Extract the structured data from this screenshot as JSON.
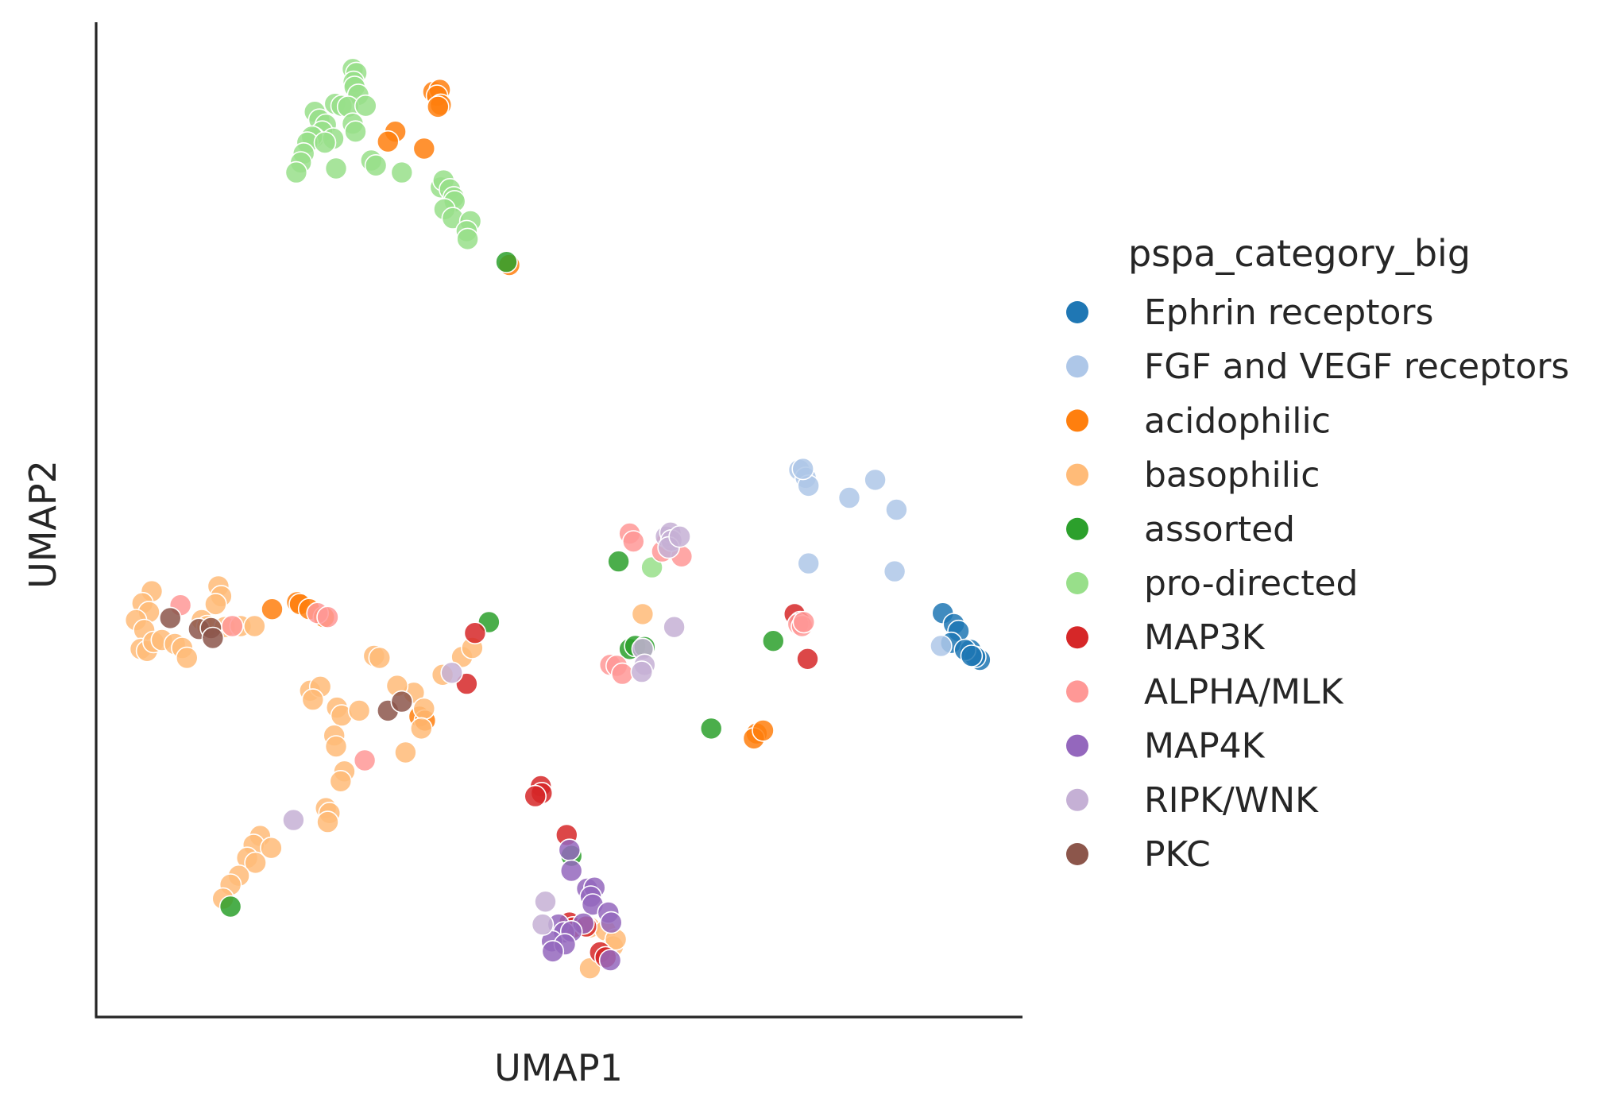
{
  "chart_data": {
    "type": "scatter",
    "xlabel": "UMAP1",
    "ylabel": "UMAP2",
    "xlim": [
      0,
      100
    ],
    "ylim": [
      0,
      100
    ],
    "x_ticks_visible": false,
    "y_ticks_visible": false,
    "grid": false,
    "legend": {
      "title": "pspa_category_big",
      "placement": "right, outside plot"
    },
    "series": [
      {
        "name": "Ephrin receptors",
        "color": "#1f77b4",
        "points": [
          [
            91.4,
            40.6
          ],
          [
            92.6,
            39.5
          ],
          [
            93.1,
            38.8
          ],
          [
            92.3,
            37.6
          ],
          [
            94.4,
            36.9
          ],
          [
            95.4,
            35.9
          ],
          [
            94.9,
            36.2
          ],
          [
            93.8,
            36.9
          ],
          [
            94.5,
            36.3
          ]
        ]
      },
      {
        "name": "FGF and VEGF receptors",
        "color": "#aec7e8",
        "points": [
          [
            75.9,
            55.0
          ],
          [
            76.6,
            54.2
          ],
          [
            76.9,
            53.4
          ],
          [
            81.3,
            52.2
          ],
          [
            84.1,
            54.0
          ],
          [
            86.4,
            51.0
          ],
          [
            76.9,
            45.6
          ],
          [
            86.2,
            44.8
          ],
          [
            91.2,
            37.3
          ],
          [
            76.3,
            55.1
          ]
        ]
      },
      {
        "name": "acidophilic",
        "color": "#ff7f0e",
        "points": [
          [
            36.4,
            93.0
          ],
          [
            37.1,
            93.2
          ],
          [
            36.8,
            92.6
          ],
          [
            37.2,
            91.7
          ],
          [
            36.9,
            91.5
          ],
          [
            32.3,
            89.0
          ],
          [
            31.5,
            88.0
          ],
          [
            35.4,
            87.3
          ],
          [
            44.6,
            75.6
          ],
          [
            19.0,
            41.0
          ],
          [
            21.7,
            41.7
          ],
          [
            22.0,
            41.5
          ],
          [
            23.0,
            41.0
          ],
          [
            24.6,
            40.2
          ],
          [
            34.9,
            30.2
          ],
          [
            35.5,
            29.8
          ],
          [
            71.3,
            28.5
          ],
          [
            71.0,
            28.0
          ],
          [
            72.0,
            28.8
          ]
        ]
      },
      {
        "name": "basophilic",
        "color": "#ffbb78",
        "points": [
          [
            6.0,
            42.8
          ],
          [
            5.0,
            41.6
          ],
          [
            5.7,
            40.7
          ],
          [
            4.3,
            39.9
          ],
          [
            5.2,
            38.9
          ],
          [
            4.8,
            37.0
          ],
          [
            5.5,
            36.8
          ],
          [
            6.2,
            37.7
          ],
          [
            7.1,
            37.9
          ],
          [
            8.5,
            37.5
          ],
          [
            9.3,
            37.1
          ],
          [
            9.8,
            36.1
          ],
          [
            13.2,
            43.3
          ],
          [
            13.5,
            42.3
          ],
          [
            12.9,
            41.5
          ],
          [
            11.4,
            39.9
          ],
          [
            12.0,
            39.3
          ],
          [
            13.9,
            39.2
          ],
          [
            15.6,
            39.3
          ],
          [
            17.1,
            39.3
          ],
          [
            30.0,
            36.3
          ],
          [
            30.6,
            36.1
          ],
          [
            39.5,
            36.2
          ],
          [
            40.6,
            37.1
          ],
          [
            37.4,
            34.4
          ],
          [
            34.3,
            32.6
          ],
          [
            32.5,
            33.3
          ],
          [
            35.4,
            31.0
          ],
          [
            23.1,
            32.8
          ],
          [
            24.2,
            33.2
          ],
          [
            23.4,
            31.9
          ],
          [
            26.0,
            31.1
          ],
          [
            26.5,
            30.3
          ],
          [
            28.4,
            30.8
          ],
          [
            35.1,
            29.0
          ],
          [
            25.7,
            28.3
          ],
          [
            25.9,
            27.2
          ],
          [
            33.4,
            26.6
          ],
          [
            26.8,
            24.7
          ],
          [
            26.4,
            23.7
          ],
          [
            24.8,
            21.0
          ],
          [
            25.2,
            20.5
          ],
          [
            25.0,
            19.6
          ],
          [
            17.7,
            18.2
          ],
          [
            17.0,
            17.3
          ],
          [
            16.3,
            16.0
          ],
          [
            17.2,
            15.5
          ],
          [
            18.9,
            17.0
          ],
          [
            15.4,
            14.2
          ],
          [
            14.5,
            13.3
          ],
          [
            13.7,
            11.9
          ],
          [
            59.0,
            40.5
          ],
          [
            53.3,
            9.0
          ],
          [
            55.0,
            8.7
          ],
          [
            55.8,
            7.1
          ],
          [
            56.1,
            7.8
          ],
          [
            53.3,
            4.9
          ]
        ]
      },
      {
        "name": "assorted",
        "color": "#2ca02c",
        "points": [
          [
            44.3,
            75.9
          ],
          [
            56.4,
            45.8
          ],
          [
            42.4,
            39.7
          ],
          [
            57.6,
            37.0
          ],
          [
            58.2,
            37.3
          ],
          [
            59.2,
            37.2
          ],
          [
            73.1,
            37.8
          ],
          [
            66.4,
            29.0
          ],
          [
            51.3,
            16.2
          ],
          [
            14.5,
            11.1
          ]
        ]
      },
      {
        "name": "pro-directed",
        "color": "#98df8a",
        "points": [
          [
            27.7,
            95.3
          ],
          [
            28.1,
            94.9
          ],
          [
            27.8,
            94.0
          ],
          [
            27.9,
            93.5
          ],
          [
            28.3,
            92.7
          ],
          [
            25.8,
            91.8
          ],
          [
            26.5,
            91.6
          ],
          [
            27.2,
            91.5
          ],
          [
            29.1,
            91.6
          ],
          [
            23.6,
            91.0
          ],
          [
            24.1,
            90.2
          ],
          [
            24.8,
            89.7
          ],
          [
            27.7,
            89.8
          ],
          [
            28.0,
            89.0
          ],
          [
            24.4,
            89.0
          ],
          [
            23.5,
            88.4
          ],
          [
            23.3,
            88.5
          ],
          [
            22.8,
            87.9
          ],
          [
            25.6,
            88.3
          ],
          [
            24.7,
            87.9
          ],
          [
            22.4,
            86.8
          ],
          [
            22.1,
            85.9
          ],
          [
            25.9,
            85.3
          ],
          [
            29.7,
            86.1
          ],
          [
            30.2,
            85.6
          ],
          [
            33.0,
            84.9
          ],
          [
            37.2,
            83.4
          ],
          [
            37.5,
            84.1
          ],
          [
            38.2,
            83.2
          ],
          [
            38.6,
            82.4
          ],
          [
            38.7,
            82.0
          ],
          [
            37.6,
            81.2
          ],
          [
            38.5,
            80.3
          ],
          [
            40.4,
            80.0
          ],
          [
            40.0,
            79.0
          ],
          [
            40.1,
            78.2
          ],
          [
            21.6,
            84.9
          ],
          [
            60.0,
            45.2
          ]
        ]
      },
      {
        "name": "MAP3K",
        "color": "#d62728",
        "points": [
          [
            40.9,
            38.6
          ],
          [
            40.0,
            33.5
          ],
          [
            75.4,
            40.5
          ],
          [
            76.0,
            39.7
          ],
          [
            76.8,
            36.0
          ],
          [
            48.0,
            23.2
          ],
          [
            48.1,
            22.5
          ],
          [
            47.4,
            22.2
          ],
          [
            50.8,
            18.3
          ],
          [
            51.1,
            9.5
          ],
          [
            51.5,
            9.0
          ],
          [
            52.9,
            9.1
          ],
          [
            54.4,
            6.5
          ],
          [
            55.0,
            6.0
          ]
        ]
      },
      {
        "name": "ALPHA/MLK",
        "color": "#ff9896",
        "points": [
          [
            9.1,
            41.4
          ],
          [
            23.9,
            40.6
          ],
          [
            25.0,
            40.2
          ],
          [
            14.7,
            39.3
          ],
          [
            29.0,
            25.8
          ],
          [
            55.5,
            35.4
          ],
          [
            56.2,
            35.3
          ],
          [
            56.8,
            34.5
          ],
          [
            57.6,
            48.6
          ],
          [
            58.0,
            47.8
          ],
          [
            61.6,
            47.8
          ],
          [
            61.1,
            46.8
          ],
          [
            75.8,
            39.5
          ],
          [
            76.2,
            39.3
          ],
          [
            76.4,
            39.7
          ],
          [
            63.2,
            46.3
          ]
        ]
      },
      {
        "name": "MAP4K",
        "color": "#9467bd",
        "points": [
          [
            51.1,
            16.8
          ],
          [
            51.3,
            14.7
          ],
          [
            53.0,
            12.9
          ],
          [
            53.8,
            13.0
          ],
          [
            53.4,
            12.1
          ],
          [
            53.6,
            11.3
          ],
          [
            52.6,
            9.4
          ],
          [
            55.3,
            10.5
          ],
          [
            55.6,
            9.5
          ],
          [
            49.9,
            9.3
          ],
          [
            50.5,
            8.5
          ],
          [
            51.3,
            8.6
          ],
          [
            49.2,
            7.6
          ],
          [
            50.6,
            7.3
          ],
          [
            49.3,
            6.6
          ],
          [
            55.5,
            5.7
          ]
        ]
      },
      {
        "name": "RIPK/WNK",
        "color": "#c5b0d5",
        "points": [
          [
            61.5,
            48.3
          ],
          [
            62.0,
            48.7
          ],
          [
            62.1,
            47.9
          ],
          [
            61.8,
            47.2
          ],
          [
            63.0,
            48.3
          ],
          [
            62.4,
            39.2
          ],
          [
            59.0,
            37.0
          ],
          [
            59.2,
            35.4
          ],
          [
            58.9,
            34.7
          ],
          [
            38.4,
            34.6
          ],
          [
            21.3,
            19.8
          ],
          [
            48.5,
            11.6
          ],
          [
            48.2,
            9.3
          ]
        ]
      },
      {
        "name": "PKC",
        "color": "#8c564b",
        "points": [
          [
            8.0,
            40.1
          ],
          [
            11.1,
            39.0
          ],
          [
            12.4,
            39.1
          ],
          [
            12.6,
            38.1
          ],
          [
            31.5,
            30.8
          ],
          [
            33.0,
            31.7
          ]
        ]
      }
    ]
  }
}
